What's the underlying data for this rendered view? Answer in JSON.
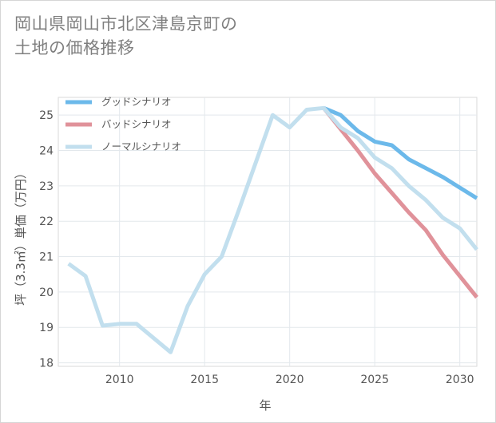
{
  "title": {
    "line1": "岡山県岡山市北区津島京町の",
    "line2": "土地の価格推移"
  },
  "chart_data": {
    "type": "line",
    "title": "岡山県岡山市北区津島京町の土地の価格推移",
    "xlabel": "年",
    "ylabel": "坪（3.3㎡）単価（万円）",
    "xlim": [
      2006.4,
      2031
    ],
    "ylim": [
      17.9,
      25.5
    ],
    "x_ticks": [
      2010,
      2015,
      2020,
      2025,
      2030
    ],
    "y_ticks": [
      18,
      19,
      20,
      21,
      22,
      23,
      24,
      25
    ],
    "grid": true,
    "legend_position": "top-left",
    "series": [
      {
        "name": "グッドシナリオ",
        "color": "#6cb9ea",
        "x": [
          2022,
          2023,
          2024,
          2025,
          2026,
          2027,
          2028,
          2029,
          2030,
          2031
        ],
        "values": [
          25.2,
          25.0,
          24.55,
          24.25,
          24.15,
          23.75,
          23.5,
          23.25,
          22.95,
          22.65
        ]
      },
      {
        "name": "バッドシナリオ",
        "color": "#e0929a",
        "x": [
          2022,
          2023,
          2024,
          2025,
          2026,
          2027,
          2028,
          2029,
          2030,
          2031
        ],
        "values": [
          25.2,
          24.6,
          24.0,
          23.35,
          22.8,
          22.25,
          21.75,
          21.05,
          20.45,
          19.85
        ]
      },
      {
        "name": "ノーマルシナリオ",
        "color": "#c2dfee",
        "x": [
          2007,
          2008,
          2009,
          2010,
          2011,
          2013,
          2014,
          2015,
          2016,
          2017,
          2018,
          2019,
          2020,
          2021,
          2022,
          2023,
          2024,
          2025,
          2026,
          2027,
          2028,
          2029,
          2030,
          2031
        ],
        "values": [
          20.8,
          20.45,
          19.05,
          19.1,
          19.1,
          18.3,
          19.6,
          20.5,
          21.0,
          22.3,
          23.65,
          25.0,
          24.65,
          25.15,
          25.2,
          24.65,
          24.35,
          23.8,
          23.5,
          23.0,
          22.6,
          22.1,
          21.8,
          21.2
        ]
      }
    ]
  }
}
